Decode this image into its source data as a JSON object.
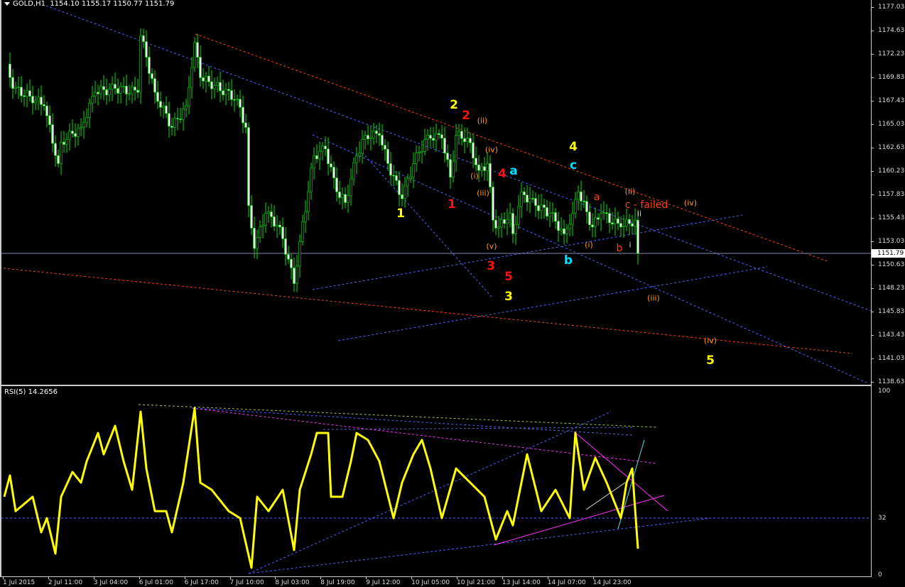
{
  "header": {
    "symbol": "GOLD,H1",
    "open": "1154.10",
    "high": "1155.17",
    "low": "1150.77",
    "close": "1151.79"
  },
  "price_axis": [
    "1177.03",
    "1174.63",
    "1172.23",
    "1169.83",
    "1167.43",
    "1165.03",
    "1162.63",
    "1160.23",
    "1157.83",
    "1155.43",
    "1153.03",
    "1150.63",
    "1148.23",
    "1145.83",
    "1143.43",
    "1141.03",
    "1138.63"
  ],
  "current_price": "1151.79",
  "time_axis": [
    "1 Jul 2015",
    "2 Jul 11:00",
    "3 Jul 04:00",
    "6 Jul 01:00",
    "6 Jul 17:00",
    "7 Jul 10:00",
    "8 Jul 03:00",
    "8 Jul 19:00",
    "9 Jul 12:00",
    "10 Jul 05:00",
    "10 Jul 21:00",
    "13 Jul 14:00",
    "14 Jul 07:00",
    "14 Jul 23:00"
  ],
  "indicator": {
    "title": "RSI(5) 14.2656",
    "axis": [
      "100",
      "32",
      "0"
    ]
  },
  "annotations": {
    "y2": "2",
    "r2": "2",
    "o_ii": "(ii)",
    "o_iv": "(iv)",
    "o_i": "(i)",
    "o_iii": "(iii)",
    "r4": "4",
    "c_a": "a",
    "y4": "4",
    "c_c": "c",
    "o_a": "a",
    "o_ii2": "(ii)",
    "c_failed": "c - failed",
    "o_iv2": "(iv)",
    "w_ii": "ii",
    "o_i2": "(i)",
    "o_b": "b",
    "w_i": "i",
    "c_b": "b",
    "y1": "1",
    "r1": "1",
    "o_v": "(v)",
    "r3": "3",
    "r5": "5",
    "y3": "3",
    "o_iii2": "(iii)",
    "o_iv3": "(iv)",
    "y5": "5"
  },
  "colors": {
    "bull": "#00e000",
    "bear": "#ffffff",
    "rsi": "#ffff00",
    "red_line": "#ff4010",
    "blue_line": "#5060ff",
    "yellow": "#ffff00",
    "red": "#ff1010",
    "orange": "#ff9a1a",
    "cyan": "#00e0ff"
  },
  "chart_data": [
    {
      "type": "candlestick",
      "title": "GOLD,H1",
      "ylim": [
        1138.63,
        1177.03
      ],
      "x_tick_labels": [
        "1 Jul 2015",
        "2 Jul 11:00",
        "3 Jul 04:00",
        "6 Jul 01:00",
        "6 Jul 17:00",
        "7 Jul 10:00",
        "8 Jul 03:00",
        "8 Jul 19:00",
        "9 Jul 12:00",
        "10 Jul 05:00",
        "10 Jul 21:00",
        "13 Jul 14:00",
        "14 Jul 07:00",
        "14 Jul 23:00"
      ],
      "close_path_bar_price": [
        [
          1,
          1171.2
        ],
        [
          3,
          1168.7
        ],
        [
          9,
          1167.9
        ],
        [
          14,
          1166.9
        ],
        [
          19,
          1161.0
        ],
        [
          20,
          1163.2
        ],
        [
          27,
          1164.7
        ],
        [
          32,
          1168.3
        ],
        [
          39,
          1168.7
        ],
        [
          47,
          1168.3
        ],
        [
          48,
          1174.1
        ],
        [
          50,
          1171.9
        ],
        [
          53,
          1168.3
        ],
        [
          59,
          1164.7
        ],
        [
          64,
          1166.9
        ],
        [
          67,
          1173.4
        ],
        [
          69,
          1169.8
        ],
        [
          74,
          1169.0
        ],
        [
          82,
          1167.6
        ],
        [
          85,
          1164.7
        ],
        [
          86,
          1156.7
        ],
        [
          88,
          1152.3
        ],
        [
          92,
          1155.9
        ],
        [
          97,
          1154.5
        ],
        [
          102,
          1148.7
        ],
        [
          104,
          1153.0
        ],
        [
          109,
          1161.8
        ],
        [
          113,
          1162.5
        ],
        [
          117,
          1158.1
        ],
        [
          120,
          1157.0
        ],
        [
          124,
          1161.8
        ],
        [
          127,
          1163.9
        ],
        [
          132,
          1163.9
        ],
        [
          135,
          1161.0
        ],
        [
          140,
          1157.4
        ],
        [
          144,
          1161.0
        ],
        [
          149,
          1163.9
        ],
        [
          154,
          1163.6
        ],
        [
          157,
          1159.6
        ],
        [
          159,
          1163.9
        ],
        [
          163,
          1163.6
        ],
        [
          167,
          1160.3
        ],
        [
          170,
          1161.0
        ],
        [
          172,
          1155.2
        ],
        [
          174,
          1154.5
        ],
        [
          178,
          1155.9
        ],
        [
          179,
          1153.8
        ],
        [
          182,
          1158.1
        ],
        [
          187,
          1156.7
        ],
        [
          192,
          1155.9
        ],
        [
          197,
          1153.8
        ],
        [
          200,
          1155.9
        ],
        [
          202,
          1158.1
        ],
        [
          207,
          1154.5
        ],
        [
          210,
          1155.9
        ],
        [
          217,
          1154.5
        ],
        [
          222,
          1155.2
        ],
        [
          223,
          1151.79
        ]
      ],
      "last": {
        "open": 1154.1,
        "high": 1155.17,
        "low": 1150.77,
        "close": 1151.79
      }
    },
    {
      "type": "line",
      "title": "RSI(5) 14.2656",
      "ylim": [
        0,
        100
      ],
      "levels": [
        32
      ],
      "points_bar_value": [
        [
          0,
          42.5
        ],
        [
          2,
          54.1
        ],
        [
          4,
          34.7
        ],
        [
          10,
          42.5
        ],
        [
          13,
          23.2
        ],
        [
          15,
          30.9
        ],
        [
          18,
          11.6
        ],
        [
          20,
          42.5
        ],
        [
          24,
          56.0
        ],
        [
          27,
          50.2
        ],
        [
          29,
          61.8
        ],
        [
          33,
          77.2
        ],
        [
          35,
          65.6
        ],
        [
          39,
          81.1
        ],
        [
          42,
          61.8
        ],
        [
          45,
          46.3
        ],
        [
          48,
          88.8
        ],
        [
          50,
          57.9
        ],
        [
          53,
          34.7
        ],
        [
          57,
          34.7
        ],
        [
          59,
          23.2
        ],
        [
          63,
          50.2
        ],
        [
          67,
          90.7
        ],
        [
          69,
          50.2
        ],
        [
          73,
          46.3
        ],
        [
          79,
          34.7
        ],
        [
          83,
          30.9
        ],
        [
          87,
          3.9
        ],
        [
          89,
          42.5
        ],
        [
          93,
          34.7
        ],
        [
          98,
          46.3
        ],
        [
          102,
          13.5
        ],
        [
          104,
          46.3
        ],
        [
          108,
          65.6
        ],
        [
          110,
          77.2
        ],
        [
          114,
          77.2
        ],
        [
          115,
          42.5
        ],
        [
          119,
          42.5
        ],
        [
          122,
          61.8
        ],
        [
          124,
          77.2
        ],
        [
          128,
          73.4
        ],
        [
          132,
          61.8
        ],
        [
          137,
          30.9
        ],
        [
          140,
          50.2
        ],
        [
          144,
          65.6
        ],
        [
          147,
          73.4
        ],
        [
          150,
          57.9
        ],
        [
          154,
          30.9
        ],
        [
          159,
          57.9
        ],
        [
          164,
          50.2
        ],
        [
          169,
          42.5
        ],
        [
          173,
          19.3
        ],
        [
          177,
          34.7
        ],
        [
          179,
          27.0
        ],
        [
          184,
          65.6
        ],
        [
          189,
          34.7
        ],
        [
          194,
          46.3
        ],
        [
          199,
          30.9
        ],
        [
          201,
          77.2
        ],
        [
          204,
          46.3
        ],
        [
          208,
          63.7
        ],
        [
          212,
          50.2
        ],
        [
          217,
          30.9
        ],
        [
          219,
          50.2
        ],
        [
          221,
          57.9
        ],
        [
          223,
          14.3
        ]
      ]
    }
  ]
}
